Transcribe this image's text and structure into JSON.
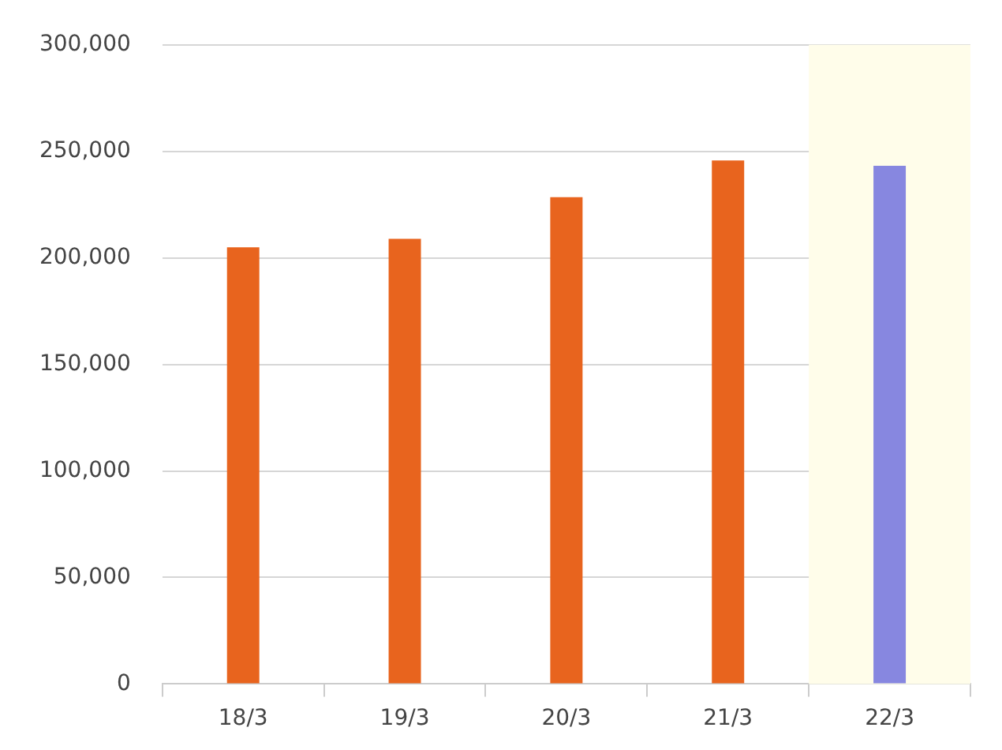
{
  "chart_data": {
    "type": "bar",
    "categories": [
      "18/3",
      "19/3",
      "20/3",
      "21/3",
      "22/3"
    ],
    "values": [
      205000,
      209000,
      228500,
      245700,
      243200
    ],
    "colors": [
      "#e8641e",
      "#e8641e",
      "#e8641e",
      "#e8641e",
      "#8787e0"
    ],
    "ylim": [
      0,
      300000
    ],
    "yticks": [
      {
        "value": 0,
        "label": "0"
      },
      {
        "value": 50000,
        "label": "50,000"
      },
      {
        "value": 100000,
        "label": "100,000"
      },
      {
        "value": 150000,
        "label": "150,000"
      },
      {
        "value": 200000,
        "label": "200,000"
      },
      {
        "value": 250000,
        "label": "250,000"
      },
      {
        "value": 300000,
        "label": "300,000"
      }
    ],
    "grid": "y",
    "legend": false,
    "bands": [
      {
        "axis": "x",
        "from": "22/3",
        "to": "22/3",
        "color": "#fffdea"
      }
    ]
  }
}
